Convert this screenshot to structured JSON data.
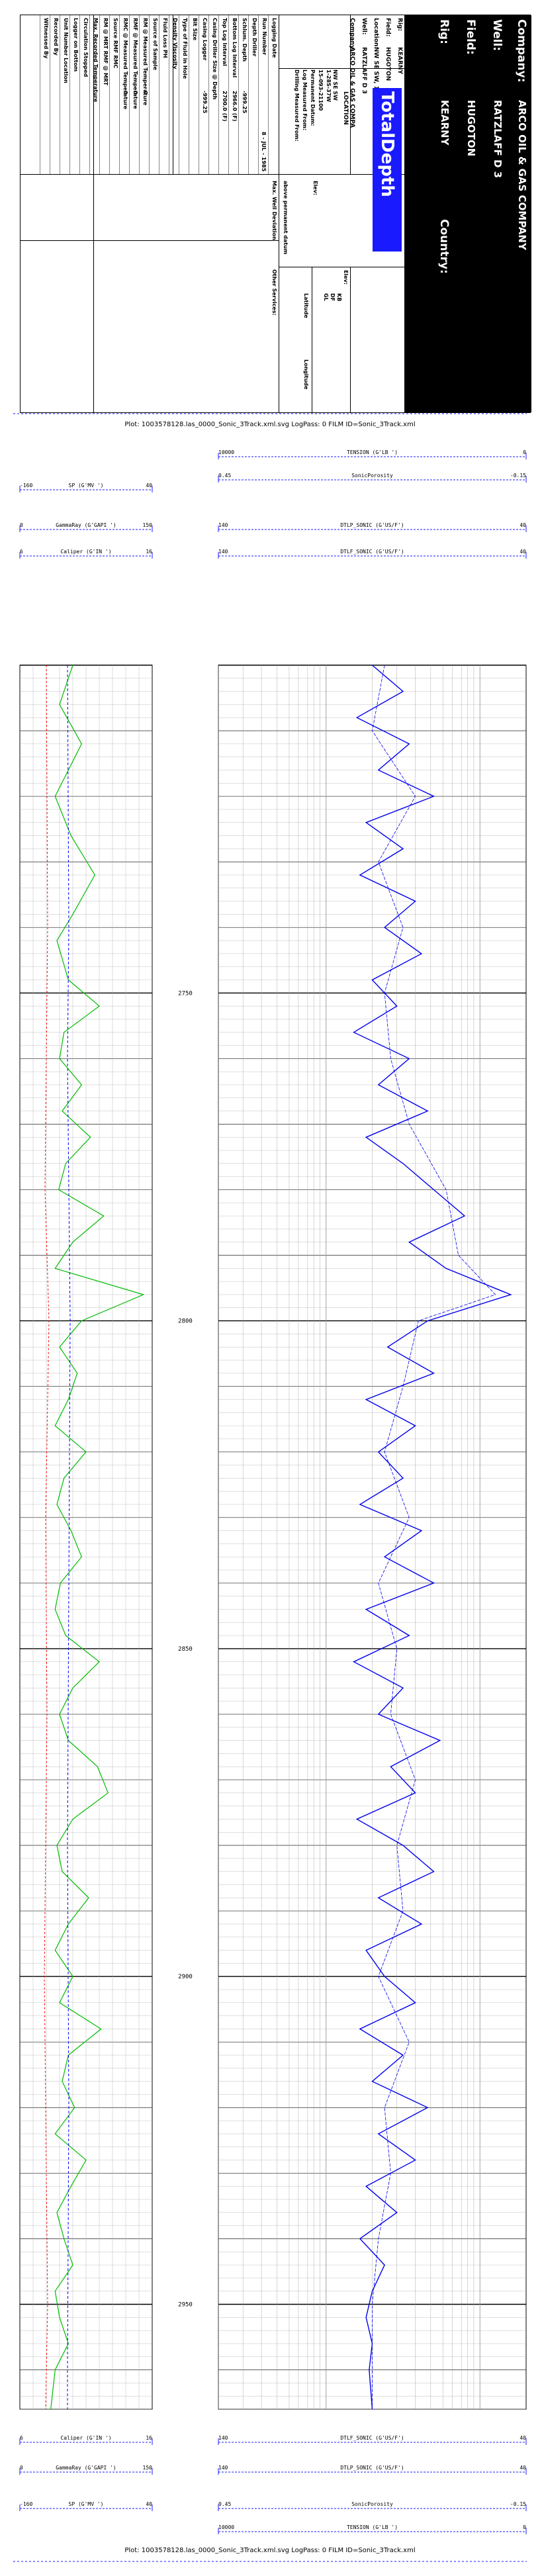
{
  "header": {
    "company_label": "Company:",
    "company": "ARCO OIL & GAS COMPANY",
    "well_label": "Well:",
    "well": "RATZLAFF D 3",
    "field_label": "Field:",
    "field": "HUGOTON",
    "rig_label": "Rig:",
    "rig": "KEARNY",
    "country_label": "Country:",
    "info_labels": [
      "Rig:",
      "Field:",
      "Location:",
      "Well:",
      "Company:"
    ],
    "info_values": [
      "KEARNY",
      "HUGOTON",
      "NW SE SW, 1-28S-37W",
      "RATZLAFF D 3",
      "ARCO OIL & GAS COMPA"
    ],
    "location_title": "LOCATION",
    "location_lines": [
      "NW SE SW",
      "1-28S-37W"
    ],
    "logo_text": "TotalDepth",
    "datum_labels": [
      "Permanent Datum:",
      "Log Measured From:",
      "Drilling Measured From:"
    ],
    "datum_value": "15-093-21100",
    "elev_label": "Elev:",
    "elev_right": [
      "KB",
      "DF",
      "GL"
    ],
    "above_pd": "above permanent datum",
    "max_dev": "Max. Well Deviation",
    "latitude": "Latitude",
    "longitude": "Longitude",
    "other_services": "Other Services:",
    "date": "8 - JUL - 1985",
    "data_labels": [
      "Logging Date",
      "Run Number",
      "Depth Driller",
      "Schlum. Depth",
      "Bottom Log Interval",
      "Top Log Interval",
      "Casing Driller Size @ Depth",
      "Casing Logger",
      "Bit Size",
      "Type of Fluid in Hole",
      "Density Viscosity",
      "Fluid Loss PH",
      "Source of Sample",
      "RM @ Measured Temperature",
      "RMF @ Measured Temperature",
      "RMC @ Measured Temperature",
      "Source RMF RMC",
      "RM @ MRT RMF @ MRT",
      "Max. Recorded Temperature",
      "Circulation Stopped",
      "Logger on Bottom",
      "Unit Number Location",
      "Recorded By",
      "Witnessed By"
    ],
    "data_values": [
      "",
      "",
      "",
      "-999.25",
      "2966.0 (F)",
      "2700.0 (F)",
      "",
      "-999.25",
      "",
      "",
      "",
      "",
      "",
      "0",
      "0",
      "0",
      "",
      "",
      "",
      "",
      "",
      "",
      "",
      ""
    ],
    "zero_vals": [
      "0",
      "0",
      "0"
    ]
  },
  "plot_caption": "Plot: 1003578128.las_0000_Sonic_3Track.xml.svg LogPass: 0 FILM ID=Sonic_3Track.xml",
  "scales_top": [
    {
      "name": "TENSION (G'LB ')",
      "min": "10000",
      "max": "0"
    },
    {
      "name": "SonicPorosity",
      "min": "0.45",
      "max": "-0.15"
    },
    {
      "name": "SP (G'MV ')",
      "min": "-160",
      "max": "40"
    },
    {
      "name": "GammaRay (G'GAPI ')",
      "min": "0",
      "max": "150"
    },
    {
      "name": "DTLP_SONIC (G'US/F')",
      "min": "140",
      "max": "40"
    },
    {
      "name": "Caliper (G'IN ')",
      "min": "6",
      "max": "16"
    },
    {
      "name": "DTLF_SONIC (G'US/F')",
      "min": "140",
      "max": "40"
    }
  ],
  "depths": [
    "2750",
    "2800",
    "2850",
    "2900",
    "2950"
  ],
  "colors": {
    "gamma": "#00bb00",
    "caliper": "#0000ff",
    "sp": "#ff0000",
    "sonic": "#0000ee",
    "scale": "#1a1aff"
  },
  "chart_data": {
    "type": "line",
    "y_axis": "depth (ft)",
    "ylim": [
      2700,
      2966
    ],
    "depth_ticks": [
      2750,
      2800,
      2850,
      2900,
      2950
    ],
    "series": [
      {
        "name": "GammaRay",
        "unit": "GAPI",
        "range": [
          0,
          150
        ],
        "depth": [
          2700,
          2706,
          2712,
          2716,
          2720,
          2726,
          2732,
          2738,
          2742,
          2748,
          2752,
          2756,
          2760,
          2764,
          2768,
          2772,
          2776,
          2780,
          2784,
          2788,
          2792,
          2796,
          2800,
          2804,
          2808,
          2812,
          2816,
          2820,
          2824,
          2828,
          2832,
          2836,
          2840,
          2844,
          2848,
          2852,
          2856,
          2860,
          2864,
          2868,
          2872,
          2876,
          2880,
          2884,
          2888,
          2892,
          2896,
          2900,
          2904,
          2908,
          2912,
          2916,
          2920,
          2924,
          2928,
          2932,
          2936,
          2940,
          2944,
          2948,
          2952,
          2956,
          2960,
          2966
        ],
        "values": [
          60,
          45,
          70,
          55,
          40,
          58,
          85,
          60,
          42,
          55,
          90,
          50,
          45,
          70,
          48,
          80,
          52,
          44,
          95,
          60,
          40,
          140,
          70,
          45,
          65,
          55,
          40,
          75,
          50,
          42,
          58,
          70,
          46,
          40,
          52,
          90,
          60,
          45,
          55,
          88,
          100,
          60,
          42,
          48,
          78,
          55,
          40,
          60,
          45,
          92,
          55,
          48,
          62,
          40,
          75,
          58,
          42,
          50,
          60,
          40,
          45,
          55,
          40,
          35
        ]
      },
      {
        "name": "Caliper",
        "unit": "IN",
        "range": [
          6,
          16
        ],
        "depth": [
          2700,
          2740,
          2760,
          2800,
          2840,
          2880,
          2920,
          2960,
          2966
        ],
        "values": [
          9.6,
          9.7,
          9.6,
          9.8,
          9.7,
          9.6,
          9.7,
          9.6,
          9.6
        ]
      },
      {
        "name": "SP",
        "unit": "MV",
        "range": [
          -160,
          40
        ],
        "depth": [
          2700,
          2740,
          2780,
          2800,
          2830,
          2860,
          2900,
          2930,
          2950,
          2966
        ],
        "values": [
          -120,
          -118,
          -122,
          -116,
          -121,
          -119,
          -123,
          -120,
          -118,
          -121
        ]
      },
      {
        "name": "DTLP_SONIC",
        "unit": "US/F",
        "range": [
          140,
          40
        ],
        "depth": [
          2700,
          2704,
          2708,
          2712,
          2716,
          2720,
          2724,
          2728,
          2732,
          2736,
          2740,
          2744,
          2748,
          2752,
          2756,
          2760,
          2764,
          2768,
          2772,
          2776,
          2780,
          2784,
          2788,
          2792,
          2796,
          2800,
          2804,
          2808,
          2812,
          2816,
          2820,
          2824,
          2828,
          2832,
          2836,
          2840,
          2844,
          2848,
          2852,
          2856,
          2860,
          2864,
          2868,
          2872,
          2876,
          2880,
          2884,
          2888,
          2892,
          2896,
          2900,
          2904,
          2908,
          2912,
          2916,
          2920,
          2924,
          2928,
          2932,
          2936,
          2940,
          2944,
          2948,
          2952,
          2956,
          2960,
          2966
        ],
        "values": [
          90,
          80,
          95,
          78,
          88,
          70,
          92,
          80,
          94,
          76,
          86,
          74,
          90,
          82,
          96,
          78,
          88,
          72,
          92,
          80,
          70,
          60,
          78,
          66,
          45,
          72,
          85,
          70,
          92,
          76,
          88,
          80,
          94,
          74,
          86,
          70,
          92,
          78,
          96,
          80,
          88,
          68,
          84,
          76,
          95,
          80,
          70,
          88,
          74,
          92,
          86,
          76,
          94,
          80,
          90,
          72,
          88,
          76,
          92,
          82,
          94,
          86,
          90,
          92,
          90,
          91,
          90
        ]
      },
      {
        "name": "DTLF_SONIC",
        "unit": "US/F",
        "range": [
          140,
          40
        ],
        "depth": [
          2700,
          2710,
          2720,
          2730,
          2740,
          2750,
          2760,
          2770,
          2780,
          2790,
          2796,
          2800,
          2810,
          2820,
          2830,
          2840,
          2850,
          2860,
          2870,
          2880,
          2890,
          2900,
          2910,
          2920,
          2930,
          2940,
          2950,
          2960,
          2966
        ],
        "values": [
          86,
          90,
          76,
          88,
          80,
          86,
          84,
          78,
          66,
          62,
          50,
          75,
          80,
          86,
          78,
          88,
          82,
          84,
          76,
          82,
          80,
          88,
          78,
          86,
          84,
          88,
          90,
          90,
          90
        ]
      }
    ]
  }
}
